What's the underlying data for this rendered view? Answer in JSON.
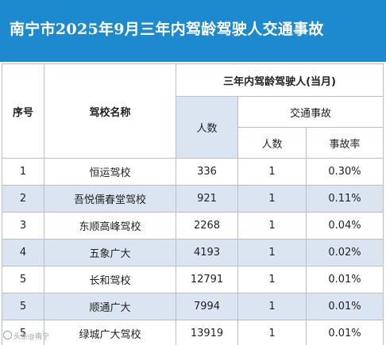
{
  "title": "南宁市2025年9月三年内驾龄驾驶人交通事故",
  "header": {
    "seq": "序号",
    "school_name": "驾校名称",
    "group": "三年内驾龄驾驶人(当月)",
    "count": "人数",
    "accident_group": "交通事故",
    "accident_count": "人数",
    "accident_rate": "事故率"
  },
  "rows": [
    {
      "seq": "1",
      "name": "恒运驾校",
      "count": "336",
      "accidents": "1",
      "rate": "0.30%"
    },
    {
      "seq": "2",
      "name": "吾悦儒春堂驾校",
      "count": "921",
      "accidents": "1",
      "rate": "0.11%"
    },
    {
      "seq": "3",
      "name": "东顺高峰驾校",
      "count": "2268",
      "accidents": "1",
      "rate": "0.04%"
    },
    {
      "seq": "4",
      "name": "五象广大",
      "count": "4193",
      "accidents": "1",
      "rate": "0.02%"
    },
    {
      "seq": "5",
      "name": "长和驾校",
      "count": "12791",
      "accidents": "1",
      "rate": "0.01%"
    },
    {
      "seq": "5",
      "name": "顺通广大",
      "count": "7994",
      "accidents": "1",
      "rate": "0.01%"
    },
    {
      "seq": "5",
      "name": "绿城广大驾校",
      "count": "13919",
      "accidents": "1",
      "rate": "0.01%"
    }
  ],
  "watermark": "头条@南宁"
}
